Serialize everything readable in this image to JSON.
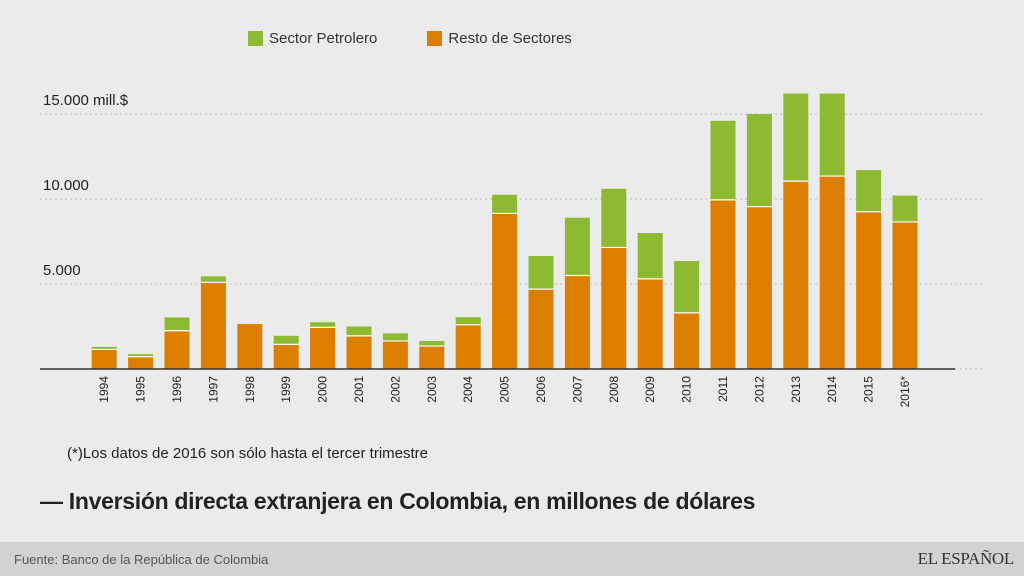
{
  "legend": {
    "petrolero_label": "Sector Petrolero",
    "resto_label": "Resto de Sectores"
  },
  "colors": {
    "petrolero": "#8dba32",
    "resto": "#dc7e02",
    "background": "#ebebeb",
    "footer": "#d2d2d2"
  },
  "note": "(*)Los datos de 2016 son sólo hasta el tercer trimestre",
  "title": "— Inversión directa extranjera en Colombia, en millones de dólares",
  "source": "Fuente: Banco de la República de Colombia",
  "logo": "EL ESPAÑOL",
  "chart_data": {
    "type": "bar",
    "stacked": true,
    "title": "Inversión directa extranjera en Colombia, en millones de dólares",
    "xlabel": "",
    "ylabel": "",
    "ylim": [
      0,
      16000
    ],
    "grid": true,
    "legend_position": "top",
    "yticks": [
      {
        "value": 5000,
        "label": "5.000"
      },
      {
        "value": 10000,
        "label": "10.000"
      },
      {
        "value": 15000,
        "label": "15.000 mill.$"
      }
    ],
    "categories": [
      "1994",
      "1995",
      "1996",
      "1997",
      "1998",
      "1999",
      "2000",
      "2001",
      "2002",
      "2003",
      "2004",
      "2005",
      "2006",
      "2007",
      "2008",
      "2009",
      "2010",
      "2011",
      "2012",
      "2013",
      "2014",
      "2015",
      "2016*"
    ],
    "series": [
      {
        "name": "Resto de Sectores",
        "color": "#dc7e02",
        "values": [
          1150,
          720,
          2250,
          5100,
          2650,
          1450,
          2450,
          1950,
          1650,
          1350,
          2600,
          9150,
          4700,
          5500,
          7150,
          5300,
          3300,
          9950,
          9550,
          11050,
          11350,
          9250,
          8650
        ]
      },
      {
        "name": "Sector Petrolero",
        "color": "#8dba32",
        "values": [
          150,
          150,
          780,
          350,
          0,
          500,
          300,
          550,
          450,
          300,
          450,
          1100,
          1950,
          3400,
          3450,
          2700,
          3050,
          4650,
          5450,
          5150,
          4850,
          2450,
          1550
        ]
      }
    ]
  }
}
